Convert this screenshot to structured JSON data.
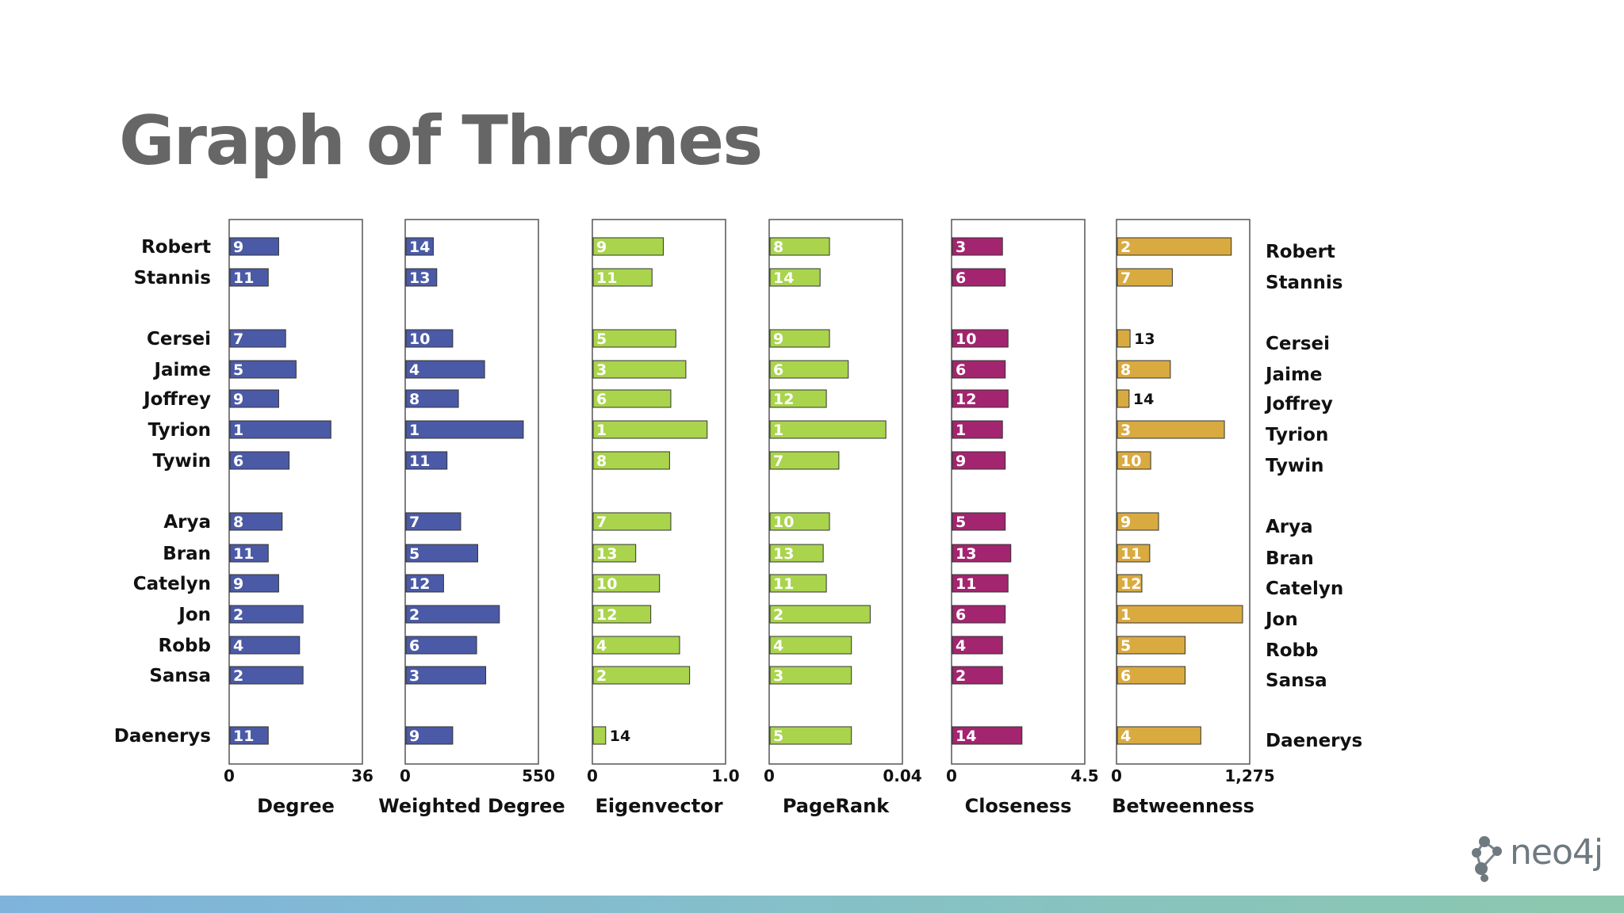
{
  "slide": {
    "title": "Graph of Thrones",
    "logo_text": "neo4j",
    "logo_icon": "neo4j-graph-icon",
    "footer_colors": [
      "#7fb3dc",
      "#86c0c8",
      "#8cc8ae"
    ]
  },
  "chart_data": {
    "type": "bar",
    "orientation": "horizontal",
    "categories": [
      "Robert",
      "Stannis",
      "Cersei",
      "Jaime",
      "Joffrey",
      "Tyrion",
      "Tywin",
      "Arya",
      "Bran",
      "Catelyn",
      "Jon",
      "Robb",
      "Sansa",
      "Daenerys"
    ],
    "groups": [
      [
        "Robert",
        "Stannis"
      ],
      [
        "Cersei",
        "Jaime",
        "Joffrey",
        "Tyrion",
        "Tywin"
      ],
      [
        "Arya",
        "Bran",
        "Catelyn",
        "Jon",
        "Robb",
        "Sansa"
      ],
      [
        "Daenerys"
      ]
    ],
    "panels": [
      {
        "name": "Degree",
        "color": "#4b5aa6",
        "xlim": [
          0,
          36
        ],
        "tick_labels": [
          "0",
          "36"
        ],
        "values": [
          14,
          11,
          16,
          19,
          14,
          29,
          17,
          15,
          11,
          14,
          21,
          20,
          21,
          11
        ],
        "ranks": [
          "9",
          "11",
          "7",
          "5",
          "9",
          "1",
          "6",
          "8",
          "11",
          "9",
          "2",
          "4",
          "2",
          "11"
        ]
      },
      {
        "name": "Weighted Degree",
        "color": "#4b5aa6",
        "xlim": [
          0,
          550
        ],
        "tick_labels": [
          "0",
          "550"
        ],
        "values": [
          120,
          135,
          205,
          345,
          230,
          515,
          180,
          240,
          315,
          165,
          410,
          310,
          350,
          205
        ],
        "ranks": [
          "14",
          "13",
          "10",
          "4",
          "8",
          "1",
          "11",
          "7",
          "5",
          "12",
          "2",
          "6",
          "3",
          "9"
        ]
      },
      {
        "name": "Eigenvector",
        "color": "#a9d44c",
        "xlim": [
          0,
          1.0
        ],
        "tick_labels": [
          "0",
          "1.0"
        ],
        "values": [
          0.56,
          0.47,
          0.66,
          0.74,
          0.62,
          0.91,
          0.61,
          0.62,
          0.34,
          0.53,
          0.46,
          0.69,
          0.77,
          0.1
        ],
        "ranks": [
          "9",
          "11",
          "5",
          "3",
          "6",
          "1",
          "8",
          "7",
          "13",
          "10",
          "12",
          "4",
          "2",
          "14"
        ]
      },
      {
        "name": "PageRank",
        "color": "#a9d44c",
        "xlim": [
          0,
          0.04
        ],
        "tick_labels": [
          "0",
          "0.04"
        ],
        "values": [
          0.019,
          0.016,
          0.019,
          0.025,
          0.018,
          0.037,
          0.022,
          0.019,
          0.017,
          0.018,
          0.032,
          0.026,
          0.026,
          0.026
        ],
        "ranks": [
          "8",
          "14",
          "9",
          "6",
          "12",
          "1",
          "7",
          "10",
          "13",
          "11",
          "2",
          "4",
          "3",
          "5"
        ]
      },
      {
        "name": "Closeness",
        "color": "#a3246f",
        "xlim": [
          0,
          4.5
        ],
        "tick_labels": [
          "0",
          "4.5"
        ],
        "values": [
          1.8,
          1.9,
          2.0,
          1.9,
          2.0,
          1.8,
          1.9,
          1.9,
          2.1,
          2.0,
          1.9,
          1.8,
          1.8,
          2.5
        ],
        "ranks": [
          "3",
          "6",
          "10",
          "6",
          "12",
          "1",
          "9",
          "5",
          "13",
          "11",
          "6",
          "4",
          "2",
          "14"
        ]
      },
      {
        "name": "Betweenness",
        "color": "#d9aa3f",
        "xlim": [
          0,
          1275
        ],
        "tick_labels": [
          "0",
          "1,275"
        ],
        "values": [
          1160,
          560,
          130,
          540,
          120,
          1090,
          340,
          420,
          330,
          250,
          1275,
          690,
          690,
          850
        ],
        "ranks": [
          "2",
          "7",
          "13",
          "8",
          "14",
          "3",
          "10",
          "9",
          "11",
          "12",
          "1",
          "5",
          "6",
          "4"
        ]
      }
    ]
  }
}
